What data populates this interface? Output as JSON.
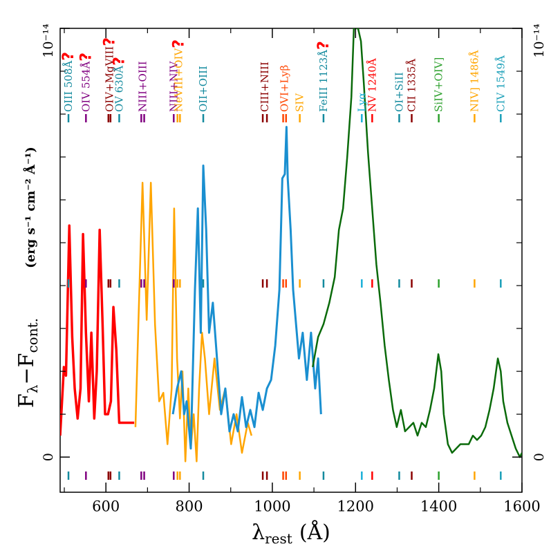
{
  "chart_data": {
    "type": "line",
    "xlabel": {
      "symbol": "λ",
      "subscript": "rest",
      "unit": "(Å)"
    },
    "ylabel": {
      "main": "F",
      "sub1": "λ",
      "mid": "−F",
      "sub2": "cont."
    },
    "yunit": "(erg s⁻¹ cm⁻² Å⁻¹)",
    "xlim": [
      490,
      1600
    ],
    "ylim": [
      -0.082,
      1
    ],
    "xticks": [
      600,
      800,
      1000,
      1200,
      1400,
      1600
    ],
    "xminor_ticks": [
      500,
      700,
      900,
      1100,
      1300,
      1500
    ],
    "yticks": [
      0,
      {
        "value": 1,
        "label": "10⁻¹⁴"
      }
    ],
    "yminor_ticks": [
      0.1,
      0.2,
      0.3,
      0.4,
      0.5,
      0.6,
      0.7,
      0.8,
      0.9
    ],
    "series": [
      {
        "color": "#ff0000",
        "width": 3.5,
        "x": [
          490,
          499,
          504,
          512,
          519,
          525,
          532,
          539,
          545,
          552,
          559,
          565,
          572,
          578,
          585,
          592,
          598,
          605,
          612,
          618,
          625,
          632,
          638,
          668
        ],
        "values": [
          0.05,
          0.21,
          0.19,
          0.54,
          0.28,
          0.16,
          0.09,
          0.16,
          0.52,
          0.29,
          0.13,
          0.29,
          0.09,
          0.2,
          0.53,
          0.31,
          0.1,
          0.1,
          0.13,
          0.35,
          0.25,
          0.08,
          0.08,
          0.08
        ]
      },
      {
        "color": "#ffa500",
        "width": 2.5,
        "x": [
          671,
          678,
          688,
          698,
          708,
          718,
          728,
          738,
          748,
          758,
          764,
          771,
          778,
          784,
          791,
          798,
          804,
          811,
          818,
          824,
          831,
          838,
          848,
          861,
          874,
          887,
          901,
          914,
          927,
          941,
          950
        ],
        "values": [
          0.07,
          0.31,
          0.64,
          0.32,
          0.64,
          0.31,
          0.13,
          0.15,
          0.03,
          0.16,
          0.58,
          0.23,
          0.09,
          0.2,
          -0.01,
          0.16,
          0.02,
          0.1,
          -0.01,
          0.16,
          0.29,
          0.23,
          0.1,
          0.23,
          0.11,
          0.16,
          0.03,
          0.1,
          0.01,
          0.08,
          0.05
        ]
      },
      {
        "color": "#1a8fd0",
        "width": 3,
        "x": [
          761,
          771,
          781,
          788,
          794,
          804,
          814,
          821,
          828,
          834,
          841,
          848,
          857,
          867,
          877,
          887,
          897,
          907,
          917,
          927,
          937,
          947,
          957,
          967,
          977,
          987,
          997,
          1007,
          1017,
          1024,
          1030,
          1034,
          1037,
          1044,
          1050,
          1057,
          1064,
          1073,
          1083,
          1093,
          1103,
          1110,
          1117
        ],
        "values": [
          0.1,
          0.16,
          0.2,
          0.1,
          0.13,
          0.02,
          0.39,
          0.58,
          0.29,
          0.68,
          0.53,
          0.29,
          0.36,
          0.23,
          0.1,
          0.16,
          0.06,
          0.1,
          0.06,
          0.14,
          0.07,
          0.11,
          0.07,
          0.15,
          0.11,
          0.16,
          0.18,
          0.26,
          0.39,
          0.65,
          0.66,
          0.77,
          0.65,
          0.53,
          0.39,
          0.31,
          0.23,
          0.29,
          0.18,
          0.29,
          0.16,
          0.23,
          0.1
        ]
      },
      {
        "color": "#0a6a0a",
        "width": 2.5,
        "x": [
          1097,
          1110,
          1123,
          1137,
          1150,
          1160,
          1170,
          1180,
          1190,
          1196,
          1206,
          1213,
          1220,
          1230,
          1240,
          1250,
          1260,
          1270,
          1280,
          1290,
          1299,
          1309,
          1319,
          1329,
          1339,
          1349,
          1359,
          1369,
          1379,
          1389,
          1399,
          1406,
          1412,
          1422,
          1432,
          1442,
          1452,
          1462,
          1472,
          1482,
          1492,
          1502,
          1512,
          1522,
          1532,
          1542,
          1549,
          1555,
          1565,
          1575,
          1585,
          1595,
          1600
        ],
        "values": [
          0.21,
          0.28,
          0.31,
          0.36,
          0.42,
          0.53,
          0.58,
          0.7,
          0.84,
          1.0,
          1.0,
          0.97,
          0.87,
          0.71,
          0.58,
          0.45,
          0.36,
          0.26,
          0.18,
          0.11,
          0.07,
          0.11,
          0.06,
          0.07,
          0.08,
          0.05,
          0.08,
          0.07,
          0.11,
          0.16,
          0.24,
          0.2,
          0.1,
          0.03,
          0.01,
          0.02,
          0.03,
          0.03,
          0.03,
          0.05,
          0.04,
          0.05,
          0.07,
          0.11,
          0.16,
          0.23,
          0.2,
          0.13,
          0.08,
          0.05,
          0.02,
          0.0,
          0.01
        ]
      }
    ],
    "lines": [
      {
        "label": "OIII 508Å",
        "query": "?",
        "color": "#138a9e",
        "wavelengths": [
          510
        ]
      },
      {
        "label": "OIV 554Å",
        "query": "?",
        "color": "#800080",
        "wavelengths": [
          552
        ]
      },
      {
        "label": "OIV+MgVIII",
        "query": "?",
        "color": "#8b0000",
        "wavelengths": [
          606,
          611
        ]
      },
      {
        "label": "OV 630Å",
        "query": "?",
        "color": "#138a9e",
        "wavelengths": [
          632
        ]
      },
      {
        "label": "NIII+OIII",
        "color": "#800080",
        "wavelengths": [
          685,
          692
        ]
      },
      {
        "label": "NIII+NIV",
        "color": "#800080",
        "wavelengths": [
          763
        ]
      },
      {
        "label": "NeVIII+OIV",
        "query": "?",
        "color": "#ffa500",
        "wavelengths": [
          772,
          778
        ]
      },
      {
        "label": "OII+OIII",
        "color": "#138a9e",
        "wavelengths": [
          834
        ]
      },
      {
        "label": "CIII+NIII",
        "color": "#8b0000",
        "wavelengths": [
          977,
          987
        ]
      },
      {
        "label": "OVI+Lyβ",
        "color": "#ff4500",
        "wavelengths": [
          1026,
          1033
        ]
      },
      {
        "label": "SIV",
        "color": "#ffa500",
        "wavelengths": [
          1066
        ]
      },
      {
        "label": "FeIII 1123Å",
        "query": "?",
        "color": "#138a9e",
        "wavelengths": [
          1123
        ]
      },
      {
        "label": "Lyα",
        "color": "#1ab0d8",
        "wavelengths": [
          1215
        ]
      },
      {
        "label": "NV 1240Å",
        "color": "#ff0000",
        "wavelengths": [
          1240
        ]
      },
      {
        "label": "OI+SiII",
        "color": "#138a9e",
        "wavelengths": [
          1305
        ]
      },
      {
        "label": "CII 1335Å",
        "color": "#8b0000",
        "wavelengths": [
          1335
        ]
      },
      {
        "label": "SiIV+OIV]",
        "color": "#2ca02c",
        "wavelengths": [
          1400
        ]
      },
      {
        "label": "NIV] 1486Å",
        "color": "#ffa500",
        "wavelengths": [
          1486
        ]
      },
      {
        "label": "CIV 1549Å",
        "color": "#1a9fb8",
        "wavelengths": [
          1549
        ]
      }
    ]
  }
}
